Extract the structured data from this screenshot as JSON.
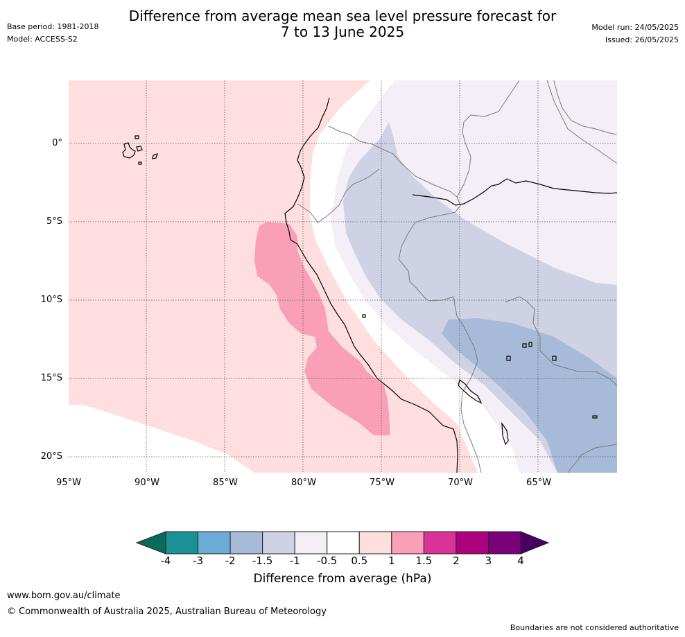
{
  "header": {
    "title_line1": "Difference from average mean sea level pressure forecast for",
    "title_line2": "7 to 13 June 2025",
    "base_period": "Base period: 1981-2018",
    "model": "Model: ACCESS-S2",
    "model_run": "Model run: 24/05/2025",
    "issued": "Issued: 26/05/2025"
  },
  "map": {
    "region": "western South America and eastern Pacific",
    "lat_labels": [
      "0°",
      "5°S",
      "10°S",
      "15°S",
      "20°S"
    ],
    "lon_labels": [
      "95°W",
      "90°W",
      "85°W",
      "80°W",
      "75°W",
      "70°W",
      "65°W"
    ],
    "colors": {
      "neg_1p5_to_neg_1": "#cfd2e5",
      "neg_1_to_neg_0p5": "#f4eef6",
      "neg_0p5_to_0p5": "#ffffff",
      "pos_0p5_to_1": "#fedede",
      "pos_1_to_1p5": "#f9a0b8",
      "neg_2_to_neg_1p5": "#a7bbd9"
    }
  },
  "colorbar": {
    "ticks": [
      "-4",
      "-3",
      "-2",
      "-1.5",
      "-1",
      "-0.5",
      "0.5",
      "1",
      "1.5",
      "2",
      "3",
      "4"
    ],
    "under_color": "#0b6b5a",
    "over_color": "#4a0060",
    "colors": [
      "#1a9295",
      "#6aacd3",
      "#a7bbd9",
      "#cfd2e5",
      "#f4eef6",
      "#ffffff",
      "#fedede",
      "#f9a0b8",
      "#db329a",
      "#ae017e",
      "#7a0177"
    ],
    "label": "Difference from average (hPa)"
  },
  "footer": {
    "url": "www.bom.gov.au/climate",
    "copyright": "© Commonwealth of Australia 2025, Australian Bureau of Meteorology",
    "disclaimer": "Boundaries are not considered authoritative"
  }
}
